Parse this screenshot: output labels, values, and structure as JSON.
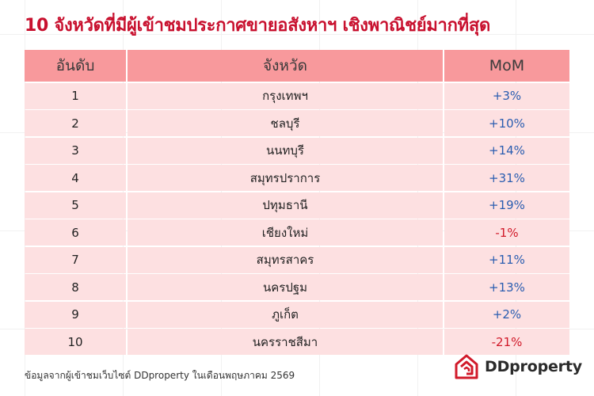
{
  "title": "10 จังหวัดที่มีผู้เข้าชมประกาศขายอสังหาฯ เชิงพาณิชย์มากที่สุด",
  "table": {
    "headers": [
      "อันดับ",
      "จังหวัด",
      "MoM"
    ],
    "rows": [
      {
        "rank": "1",
        "province": "กรุงเทพฯ",
        "mom": "+3%"
      },
      {
        "rank": "2",
        "province": "ชลบุรี",
        "mom": "+10%"
      },
      {
        "rank": "3",
        "province": "นนทบุรี",
        "mom": "+14%"
      },
      {
        "rank": "4",
        "province": "สมุทรปราการ",
        "mom": "+31%"
      },
      {
        "rank": "5",
        "province": "ปทุมธานี",
        "mom": "+19%"
      },
      {
        "rank": "6",
        "province": "เชียงใหม่",
        "mom": "-1%"
      },
      {
        "rank": "7",
        "province": "สมุทรสาคร",
        "mom": "+11%"
      },
      {
        "rank": "8",
        "province": "นครปฐม",
        "mom": "+13%"
      },
      {
        "rank": "9",
        "province": "ภูเก็ต",
        "mom": "+2%"
      },
      {
        "rank": "10",
        "province": "นครราชสีมา",
        "mom": "-21%"
      }
    ]
  },
  "source": "ข้อมูลจากผู้เข้าชมเว็บไซต์ DDproperty ในเดือนพฤษภาคม 2569",
  "logo": {
    "text": "DDproperty",
    "icon": "ddproperty-logo-icon"
  },
  "colors": {
    "title": "#c8102e",
    "header_bg": "#f8999c",
    "row_bg": "#fde0e1",
    "positive": "#2a5db0",
    "negative": "#d11a2a"
  }
}
